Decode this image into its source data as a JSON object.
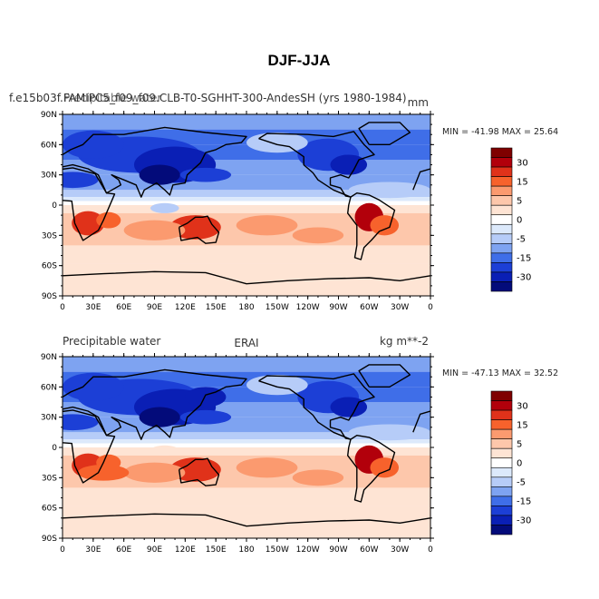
{
  "figure": {
    "title": "DJF-JJA"
  },
  "panels": [
    {
      "id": "model",
      "title_left": "f.e15b03f.FAMIPC5_f09_f09.CLB-T0-SGHHT-300-AndesSH (yrs 1980-1984)",
      "title_left_overlay": "Precipitable water",
      "title_right": "mm",
      "stats": "MIN = -41.98 MAX =  25.64"
    },
    {
      "id": "erai",
      "title_left": "Precipitable water",
      "title_center": "ERAI",
      "title_right": "kg m**-2",
      "stats": "MIN = -47.13 MAX =  32.52"
    }
  ],
  "axes": {
    "lat_labels": [
      "90N",
      "60N",
      "30N",
      "0",
      "30S",
      "60S",
      "90S"
    ],
    "lon_labels": [
      "0",
      "30E",
      "60E",
      "90E",
      "120E",
      "150E",
      "180",
      "150W",
      "120W",
      "90W",
      "60W",
      "30W",
      "0"
    ]
  },
  "colorbar": {
    "labels": [
      "30",
      "15",
      "5",
      "0",
      "-5",
      "-15",
      "-30"
    ],
    "colors": [
      "#7f0000",
      "#b2000b",
      "#e0321a",
      "#f7622c",
      "#fb9a6f",
      "#fdc7ab",
      "#fee4d4",
      "#ffffff",
      "#dce9fb",
      "#b6ccf8",
      "#7ea3f1",
      "#3f6ee8",
      "#1c3fd6",
      "#0a1fb5",
      "#030b7a"
    ]
  },
  "chart_data": {
    "type": "heatmap",
    "title": "DJF-JJA",
    "panels": [
      {
        "name": "f.e15b03f.FAMIPC5_f09_f09.CLB-T0-SGHHT-300-AndesSH (yrs 1980-1984)",
        "variable": "Precipitable water",
        "units": "mm",
        "min": -41.98,
        "max": 25.64
      },
      {
        "name": "ERAI",
        "variable": "Precipitable water",
        "units": "kg m**-2",
        "min": -47.13,
        "max": 32.52
      }
    ],
    "levels": [
      -30,
      -25,
      -20,
      -15,
      -10,
      -5,
      -2,
      0,
      2,
      5,
      10,
      15,
      20,
      25,
      30
    ],
    "x_range": [
      0,
      360
    ],
    "y_range": [
      -90,
      90
    ],
    "xlabel": "",
    "ylabel": ""
  }
}
